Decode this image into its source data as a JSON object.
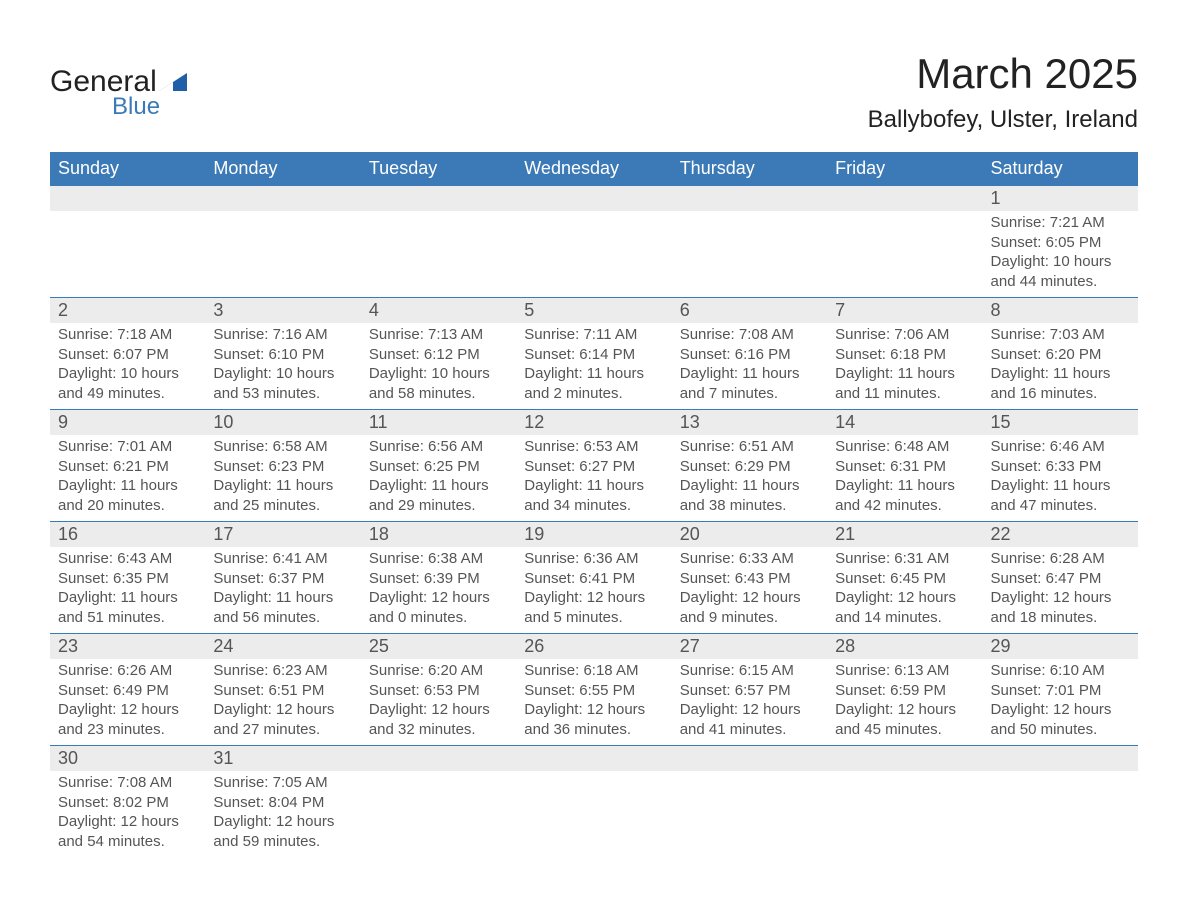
{
  "logo": {
    "part1": "General",
    "part2": "Blue",
    "tri_color": "#1e5fa7"
  },
  "header": {
    "month_title": "March 2025",
    "location": "Ballybofey, Ulster, Ireland"
  },
  "style": {
    "header_bg": "#3b79b7",
    "header_text": "#ffffff",
    "daynum_bg": "#ececec",
    "row_border": "#3b79b7",
    "text_color": "#555555",
    "title_color": "#222222",
    "title_fontsize": 42,
    "location_fontsize": 24,
    "dayname_fontsize": 18,
    "daynum_fontsize": 18,
    "detail_fontsize": 15
  },
  "day_names": [
    "Sunday",
    "Monday",
    "Tuesday",
    "Wednesday",
    "Thursday",
    "Friday",
    "Saturday"
  ],
  "weeks": [
    [
      null,
      null,
      null,
      null,
      null,
      null,
      {
        "n": "1",
        "sr": "7:21 AM",
        "ss": "6:05 PM",
        "dh": "10",
        "dm": "44"
      }
    ],
    [
      {
        "n": "2",
        "sr": "7:18 AM",
        "ss": "6:07 PM",
        "dh": "10",
        "dm": "49"
      },
      {
        "n": "3",
        "sr": "7:16 AM",
        "ss": "6:10 PM",
        "dh": "10",
        "dm": "53"
      },
      {
        "n": "4",
        "sr": "7:13 AM",
        "ss": "6:12 PM",
        "dh": "10",
        "dm": "58"
      },
      {
        "n": "5",
        "sr": "7:11 AM",
        "ss": "6:14 PM",
        "dh": "11",
        "dm": "2"
      },
      {
        "n": "6",
        "sr": "7:08 AM",
        "ss": "6:16 PM",
        "dh": "11",
        "dm": "7"
      },
      {
        "n": "7",
        "sr": "7:06 AM",
        "ss": "6:18 PM",
        "dh": "11",
        "dm": "11"
      },
      {
        "n": "8",
        "sr": "7:03 AM",
        "ss": "6:20 PM",
        "dh": "11",
        "dm": "16"
      }
    ],
    [
      {
        "n": "9",
        "sr": "7:01 AM",
        "ss": "6:21 PM",
        "dh": "11",
        "dm": "20"
      },
      {
        "n": "10",
        "sr": "6:58 AM",
        "ss": "6:23 PM",
        "dh": "11",
        "dm": "25"
      },
      {
        "n": "11",
        "sr": "6:56 AM",
        "ss": "6:25 PM",
        "dh": "11",
        "dm": "29"
      },
      {
        "n": "12",
        "sr": "6:53 AM",
        "ss": "6:27 PM",
        "dh": "11",
        "dm": "34"
      },
      {
        "n": "13",
        "sr": "6:51 AM",
        "ss": "6:29 PM",
        "dh": "11",
        "dm": "38"
      },
      {
        "n": "14",
        "sr": "6:48 AM",
        "ss": "6:31 PM",
        "dh": "11",
        "dm": "42"
      },
      {
        "n": "15",
        "sr": "6:46 AM",
        "ss": "6:33 PM",
        "dh": "11",
        "dm": "47"
      }
    ],
    [
      {
        "n": "16",
        "sr": "6:43 AM",
        "ss": "6:35 PM",
        "dh": "11",
        "dm": "51"
      },
      {
        "n": "17",
        "sr": "6:41 AM",
        "ss": "6:37 PM",
        "dh": "11",
        "dm": "56"
      },
      {
        "n": "18",
        "sr": "6:38 AM",
        "ss": "6:39 PM",
        "dh": "12",
        "dm": "0"
      },
      {
        "n": "19",
        "sr": "6:36 AM",
        "ss": "6:41 PM",
        "dh": "12",
        "dm": "5"
      },
      {
        "n": "20",
        "sr": "6:33 AM",
        "ss": "6:43 PM",
        "dh": "12",
        "dm": "9"
      },
      {
        "n": "21",
        "sr": "6:31 AM",
        "ss": "6:45 PM",
        "dh": "12",
        "dm": "14"
      },
      {
        "n": "22",
        "sr": "6:28 AM",
        "ss": "6:47 PM",
        "dh": "12",
        "dm": "18"
      }
    ],
    [
      {
        "n": "23",
        "sr": "6:26 AM",
        "ss": "6:49 PM",
        "dh": "12",
        "dm": "23"
      },
      {
        "n": "24",
        "sr": "6:23 AM",
        "ss": "6:51 PM",
        "dh": "12",
        "dm": "27"
      },
      {
        "n": "25",
        "sr": "6:20 AM",
        "ss": "6:53 PM",
        "dh": "12",
        "dm": "32"
      },
      {
        "n": "26",
        "sr": "6:18 AM",
        "ss": "6:55 PM",
        "dh": "12",
        "dm": "36"
      },
      {
        "n": "27",
        "sr": "6:15 AM",
        "ss": "6:57 PM",
        "dh": "12",
        "dm": "41"
      },
      {
        "n": "28",
        "sr": "6:13 AM",
        "ss": "6:59 PM",
        "dh": "12",
        "dm": "45"
      },
      {
        "n": "29",
        "sr": "6:10 AM",
        "ss": "7:01 PM",
        "dh": "12",
        "dm": "50"
      }
    ],
    [
      {
        "n": "30",
        "sr": "7:08 AM",
        "ss": "8:02 PM",
        "dh": "12",
        "dm": "54"
      },
      {
        "n": "31",
        "sr": "7:05 AM",
        "ss": "8:04 PM",
        "dh": "12",
        "dm": "59"
      },
      null,
      null,
      null,
      null,
      null
    ]
  ],
  "labels": {
    "sunrise": "Sunrise: ",
    "sunset": "Sunset: ",
    "daylight_prefix": "Daylight: ",
    "hours_word": " hours",
    "and_word": "and ",
    "minutes_word": " minutes."
  }
}
